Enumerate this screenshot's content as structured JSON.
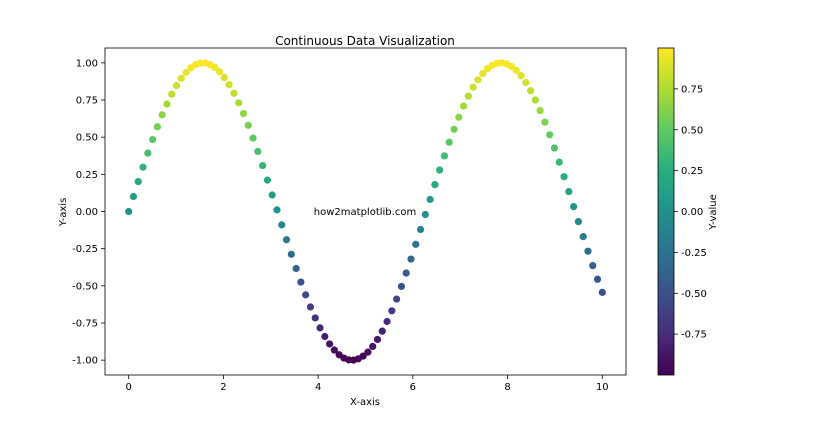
{
  "chart_data": {
    "type": "scatter",
    "title": "Continuous Data Visualization",
    "xlabel": "X-axis",
    "ylabel": "Y-axis",
    "xlim": [
      -0.5,
      10.5
    ],
    "ylim": [
      -1.1,
      1.1
    ],
    "grid": false,
    "legend": "none",
    "x_ticks": [
      "0",
      "2",
      "4",
      "6",
      "8",
      "10"
    ],
    "y_ticks": [
      "-1.00",
      "-0.75",
      "-0.50",
      "-0.25",
      "0.00",
      "0.25",
      "0.50",
      "0.75",
      "1.00"
    ],
    "series": [
      {
        "x": [
          0,
          0.101,
          0.202,
          0.303,
          0.404,
          0.505,
          0.606,
          0.707,
          0.808,
          0.909,
          1.01,
          1.111,
          1.212,
          1.313,
          1.414,
          1.515,
          1.616,
          1.717,
          1.818,
          1.919,
          2.02,
          2.121,
          2.222,
          2.323,
          2.424,
          2.525,
          2.626,
          2.727,
          2.828,
          2.929,
          3.03,
          3.131,
          3.232,
          3.333,
          3.434,
          3.535,
          3.636,
          3.737,
          3.838,
          3.939,
          4.04,
          4.141,
          4.242,
          4.343,
          4.444,
          4.545,
          4.646,
          4.747,
          4.848,
          4.949,
          5.051,
          5.152,
          5.253,
          5.354,
          5.455,
          5.556,
          5.657,
          5.758,
          5.859,
          5.96,
          6.061,
          6.162,
          6.263,
          6.364,
          6.465,
          6.566,
          6.667,
          6.768,
          6.869,
          6.97,
          7.071,
          7.172,
          7.273,
          7.374,
          7.475,
          7.576,
          7.677,
          7.778,
          7.879,
          7.98,
          8.081,
          8.182,
          8.283,
          8.384,
          8.485,
          8.586,
          8.687,
          8.788,
          8.889,
          8.99,
          9.091,
          9.192,
          9.293,
          9.394,
          9.495,
          9.596,
          9.697,
          9.798,
          9.899,
          10.0
        ],
        "y": [
          0.0,
          0.101,
          0.201,
          0.298,
          0.393,
          0.484,
          0.57,
          0.65,
          0.723,
          0.789,
          0.847,
          0.896,
          0.936,
          0.967,
          0.988,
          0.998,
          0.999,
          0.989,
          0.97,
          0.94,
          0.901,
          0.853,
          0.796,
          0.731,
          0.659,
          0.58,
          0.494,
          0.404,
          0.309,
          0.211,
          0.111,
          0.011,
          -0.09,
          -0.19,
          -0.288,
          -0.383,
          -0.475,
          -0.561,
          -0.642,
          -0.716,
          -0.783,
          -0.841,
          -0.891,
          -0.932,
          -0.964,
          -0.986,
          -0.998,
          -1.0,
          -0.991,
          -0.973,
          -0.946,
          -0.908,
          -0.861,
          -0.805,
          -0.74,
          -0.668,
          -0.589,
          -0.504,
          -0.414,
          -0.32,
          -0.221,
          -0.121,
          -0.02,
          0.081,
          0.181,
          0.279,
          0.374,
          0.466,
          0.553,
          0.634,
          0.709,
          0.776,
          0.836,
          0.886,
          0.928,
          0.961,
          0.984,
          0.997,
          1.0,
          0.993,
          0.976,
          0.95,
          0.914,
          0.868,
          0.813,
          0.75,
          0.679,
          0.601,
          0.516,
          0.427,
          0.332,
          0.234,
          0.134,
          0.033,
          -0.068,
          -0.169,
          -0.267,
          -0.364,
          -0.456,
          -0.544
        ],
        "color_by": "y",
        "colormap": "viridis"
      }
    ],
    "colorbar": {
      "label": "Y-value",
      "range": [
        -1.0,
        1.0
      ],
      "ticks": [
        "-0.75",
        "-0.50",
        "-0.25",
        "0.00",
        "0.25",
        "0.50",
        "0.75"
      ]
    },
    "annotation": "how2matplotlib.com"
  }
}
